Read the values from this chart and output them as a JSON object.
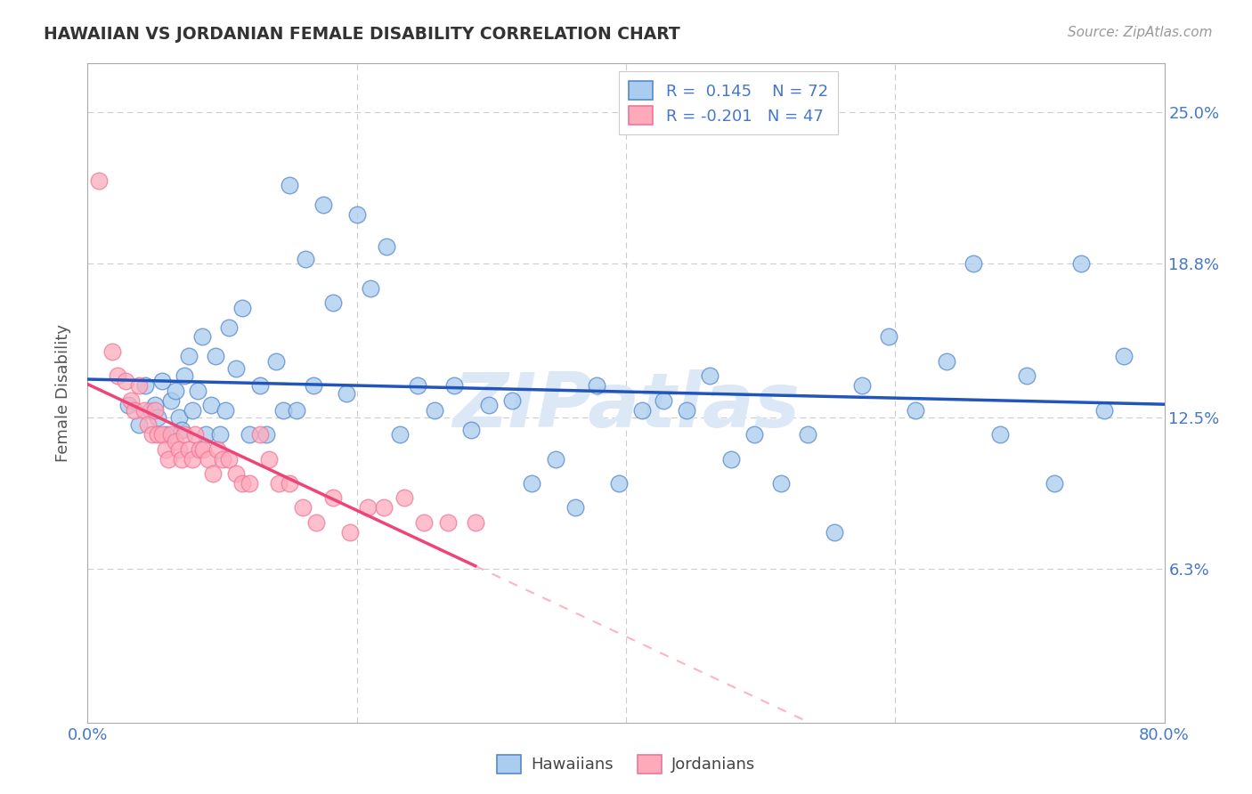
{
  "title": "HAWAIIAN VS JORDANIAN FEMALE DISABILITY CORRELATION CHART",
  "source": "Source: ZipAtlas.com",
  "ylabel_label": "Female Disability",
  "xlim": [
    0.0,
    0.8
  ],
  "ylim": [
    0.0,
    0.27
  ],
  "ytick_values": [
    0.063,
    0.125,
    0.188,
    0.25
  ],
  "ytick_labels": [
    "6.3%",
    "12.5%",
    "18.8%",
    "25.0%"
  ],
  "xtick_values": [
    0.0,
    0.2,
    0.4,
    0.6,
    0.8
  ],
  "xtick_labels": [
    "0.0%",
    "",
    "",
    "",
    "80.0%"
  ],
  "grid_color": "#cccccc",
  "background_color": "#ffffff",
  "hawaiian_face_color": "#aaccee",
  "jordanian_face_color": "#ffaabb",
  "hawaiian_edge_color": "#5588cc",
  "jordanian_edge_color": "#ee7799",
  "hawaiian_line_color": "#2255bb",
  "jordanian_solid_color": "#ee4477",
  "jordanian_dash_color": "#ffaabb",
  "hawaiian_R": 0.145,
  "jordanian_R": -0.201,
  "hawaiian_N": 72,
  "jordanian_N": 47,
  "watermark": "ZIPatlas",
  "watermark_color": "#dce8f5",
  "tick_color": "#4477cc",
  "title_color": "#333333",
  "label_color": "#555555",
  "hawaiian_x": [
    0.03,
    0.038,
    0.043,
    0.047,
    0.05,
    0.052,
    0.055,
    0.058,
    0.062,
    0.065,
    0.068,
    0.07,
    0.072,
    0.075,
    0.078,
    0.082,
    0.085,
    0.088,
    0.092,
    0.095,
    0.098,
    0.102,
    0.105,
    0.11,
    0.115,
    0.12,
    0.128,
    0.133,
    0.14,
    0.145,
    0.15,
    0.155,
    0.162,
    0.168,
    0.175,
    0.182,
    0.192,
    0.2,
    0.21,
    0.222,
    0.232,
    0.245,
    0.258,
    0.272,
    0.285,
    0.298,
    0.315,
    0.33,
    0.348,
    0.362,
    0.378,
    0.395,
    0.412,
    0.428,
    0.445,
    0.462,
    0.478,
    0.495,
    0.515,
    0.535,
    0.555,
    0.575,
    0.595,
    0.615,
    0.638,
    0.658,
    0.678,
    0.698,
    0.718,
    0.738,
    0.755,
    0.77
  ],
  "hawaiian_y": [
    0.13,
    0.122,
    0.138,
    0.128,
    0.13,
    0.125,
    0.14,
    0.118,
    0.132,
    0.136,
    0.125,
    0.12,
    0.142,
    0.15,
    0.128,
    0.136,
    0.158,
    0.118,
    0.13,
    0.15,
    0.118,
    0.128,
    0.162,
    0.145,
    0.17,
    0.118,
    0.138,
    0.118,
    0.148,
    0.128,
    0.22,
    0.128,
    0.19,
    0.138,
    0.212,
    0.172,
    0.135,
    0.208,
    0.178,
    0.195,
    0.118,
    0.138,
    0.128,
    0.138,
    0.12,
    0.13,
    0.132,
    0.098,
    0.108,
    0.088,
    0.138,
    0.098,
    0.128,
    0.132,
    0.128,
    0.142,
    0.108,
    0.118,
    0.098,
    0.118,
    0.078,
    0.138,
    0.158,
    0.128,
    0.148,
    0.188,
    0.118,
    0.142,
    0.098,
    0.188,
    0.128,
    0.15
  ],
  "jordanian_x": [
    0.008,
    0.018,
    0.022,
    0.028,
    0.032,
    0.035,
    0.038,
    0.042,
    0.045,
    0.048,
    0.05,
    0.052,
    0.055,
    0.058,
    0.06,
    0.062,
    0.065,
    0.068,
    0.07,
    0.072,
    0.075,
    0.078,
    0.08,
    0.083,
    0.086,
    0.09,
    0.093,
    0.096,
    0.1,
    0.105,
    0.11,
    0.115,
    0.12,
    0.128,
    0.135,
    0.142,
    0.15,
    0.16,
    0.17,
    0.182,
    0.195,
    0.208,
    0.22,
    0.235,
    0.25,
    0.268,
    0.288
  ],
  "jordanian_y": [
    0.222,
    0.152,
    0.142,
    0.14,
    0.132,
    0.128,
    0.138,
    0.128,
    0.122,
    0.118,
    0.128,
    0.118,
    0.118,
    0.112,
    0.108,
    0.118,
    0.115,
    0.112,
    0.108,
    0.118,
    0.112,
    0.108,
    0.118,
    0.112,
    0.112,
    0.108,
    0.102,
    0.112,
    0.108,
    0.108,
    0.102,
    0.098,
    0.098,
    0.118,
    0.108,
    0.098,
    0.098,
    0.088,
    0.082,
    0.092,
    0.078,
    0.088,
    0.088,
    0.092,
    0.082,
    0.082,
    0.082
  ]
}
